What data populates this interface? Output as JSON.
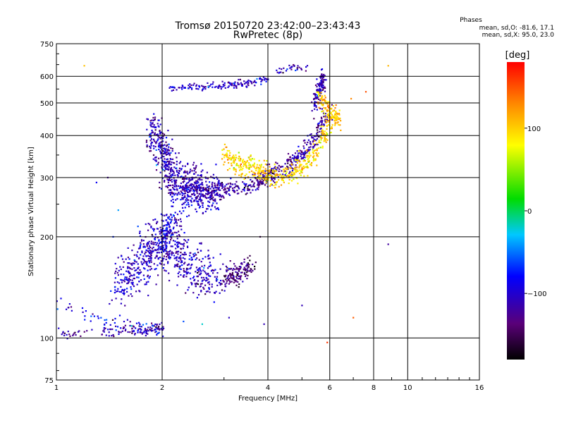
{
  "chart_data": {
    "type": "scatter",
    "title": "Tromsø 20150720 23:42:00–23:43:43",
    "subtitle": "RwPretec (8p)",
    "xlabel": "Frequency [MHz]",
    "ylabel": "Stationary phase Virtual Height [km]",
    "x_scale": "log",
    "y_scale": "log",
    "xlim": [
      1,
      16
    ],
    "ylim": [
      75,
      750
    ],
    "x_ticks": [
      1,
      2,
      4,
      6,
      8,
      10,
      16
    ],
    "x_tick_labels": [
      "1",
      "2",
      "4",
      "6",
      "8",
      "10",
      "16"
    ],
    "y_ticks": [
      75,
      100,
      200,
      300,
      400,
      500,
      600,
      750
    ],
    "y_tick_labels": [
      "75",
      "100",
      "200",
      "300",
      "400",
      "500",
      "600",
      "750"
    ],
    "grid": true,
    "phase_stats": {
      "heading": "Phases",
      "line_o": "mean, sd,O: -81.6, 17.1",
      "line_x": "mean, sd,X:  95.0, 23.0"
    },
    "colorbar": {
      "label": "[deg]",
      "range": [
        -180,
        180
      ],
      "ticks": [
        100,
        0,
        -100
      ],
      "tick_labels": [
        "100",
        "0",
        "−100"
      ],
      "colormap": "rainbow (black-purple-blue-cyan-green-yellow-red)"
    },
    "series": [
      {
        "traces": [
          {
            "f": [
              1.0,
              1.3,
              1.55,
              1.8,
              2.0
            ],
            "h": [
              102,
              104,
              106,
              105,
              107
            ],
            "phase": -115,
            "spread": [
              0.02,
              0.03
            ],
            "n": 120
          },
          {
            "f": [
              1.0,
              1.25,
              1.5,
              1.75,
              2.0
            ],
            "h": [
              125,
              118,
              112,
              108,
              106
            ],
            "phase": -90,
            "spread": [
              0.02,
              0.04
            ],
            "n": 60
          }
        ]
      },
      {
        "traces": [
          {
            "f": [
              1.5,
              1.7,
              1.9,
              2.05,
              2.4,
              2.9
            ],
            "h": [
              140,
              165,
              185,
              200,
              160,
              150
            ],
            "phase": -105,
            "spread": [
              0.06,
              0.15
            ],
            "n": 700
          },
          {
            "f": [
              2.0,
              2.1,
              2.3,
              2.6,
              2.9
            ],
            "h": [
              200,
              220,
              250,
              260,
              270
            ],
            "phase": -90,
            "spread": [
              0.03,
              0.1
            ],
            "n": 150
          }
        ]
      },
      {
        "traces": [
          {
            "f": [
              1.85,
              2.0,
              2.15,
              2.5,
              2.9
            ],
            "h": [
              420,
              360,
              300,
              280,
              270
            ],
            "phase": -110,
            "spread": [
              0.04,
              0.12
            ],
            "n": 560
          }
        ]
      },
      {
        "traces": [
          {
            "f": [
              2.0,
              2.5,
              3.0,
              3.5,
              4.0,
              4.5,
              5.0,
              5.5,
              5.9
            ],
            "h": [
              280,
              275,
              275,
              282,
              300,
              320,
              350,
              400,
              470
            ],
            "phase": -118,
            "spread": [
              0.03,
              0.05
            ],
            "n": 520
          },
          {
            "f": [
              5.4,
              5.6,
              5.8
            ],
            "h": [
              480,
              550,
              610
            ],
            "phase": -115,
            "spread": [
              0.02,
              0.05
            ],
            "n": 120
          }
        ]
      },
      {
        "traces": [
          {
            "f": [
              3.0,
              3.3,
              3.6,
              4.0,
              4.5,
              5.0,
              5.5,
              6.0
            ],
            "h": [
              350,
              330,
              320,
              305,
              300,
              320,
              360,
              440
            ],
            "phase": 95,
            "spread": [
              0.03,
              0.06
            ],
            "n": 420
          },
          {
            "f": [
              5.6,
              6.0,
              6.4
            ],
            "h": [
              520,
              470,
              440
            ],
            "phase": 105,
            "spread": [
              0.02,
              0.05
            ],
            "n": 120
          }
        ]
      },
      {
        "traces": [
          {
            "f": [
              2.1,
              2.5,
              3.0,
              3.5,
              4.0
            ],
            "h": [
              555,
              560,
              565,
              570,
              590
            ],
            "phase": -100,
            "spread": [
              0.02,
              0.02
            ],
            "n": 150
          },
          {
            "f": [
              4.3,
              4.8,
              5.3
            ],
            "h": [
              620,
              640,
              630
            ],
            "phase": -110,
            "spread": [
              0.02,
              0.02
            ],
            "n": 30
          }
        ]
      },
      {
        "traces": [
          {
            "f": [
              3.0,
              3.3,
              3.6
            ],
            "h": [
              150,
              155,
              165
            ],
            "phase": -135,
            "spread": [
              0.03,
              0.06
            ],
            "n": 140
          }
        ]
      },
      {
        "points": [
          {
            "f": 1.2,
            "h": 645,
            "phase": 105
          },
          {
            "f": 1.5,
            "h": 240,
            "phase": -40
          },
          {
            "f": 1.4,
            "h": 300,
            "phase": -120
          },
          {
            "f": 1.3,
            "h": 290,
            "phase": -85
          },
          {
            "f": 2.6,
            "h": 110,
            "phase": -20
          },
          {
            "f": 3.1,
            "h": 115,
            "phase": -105
          },
          {
            "f": 3.8,
            "h": 200,
            "phase": -150
          },
          {
            "f": 3.9,
            "h": 110,
            "phase": -110
          },
          {
            "f": 5.0,
            "h": 125,
            "phase": -110
          },
          {
            "f": 5.9,
            "h": 97,
            "phase": 160
          },
          {
            "f": 7.0,
            "h": 115,
            "phase": 145
          },
          {
            "f": 8.8,
            "h": 190,
            "phase": -120
          },
          {
            "f": 8.8,
            "h": 645,
            "phase": 110
          },
          {
            "f": 7.6,
            "h": 540,
            "phase": 150
          },
          {
            "f": 6.9,
            "h": 515,
            "phase": 130
          },
          {
            "f": 2.3,
            "h": 112,
            "phase": -60
          },
          {
            "f": 1.45,
            "h": 200,
            "phase": -70
          },
          {
            "f": 4.9,
            "h": 360,
            "phase": 80
          }
        ]
      }
    ]
  }
}
